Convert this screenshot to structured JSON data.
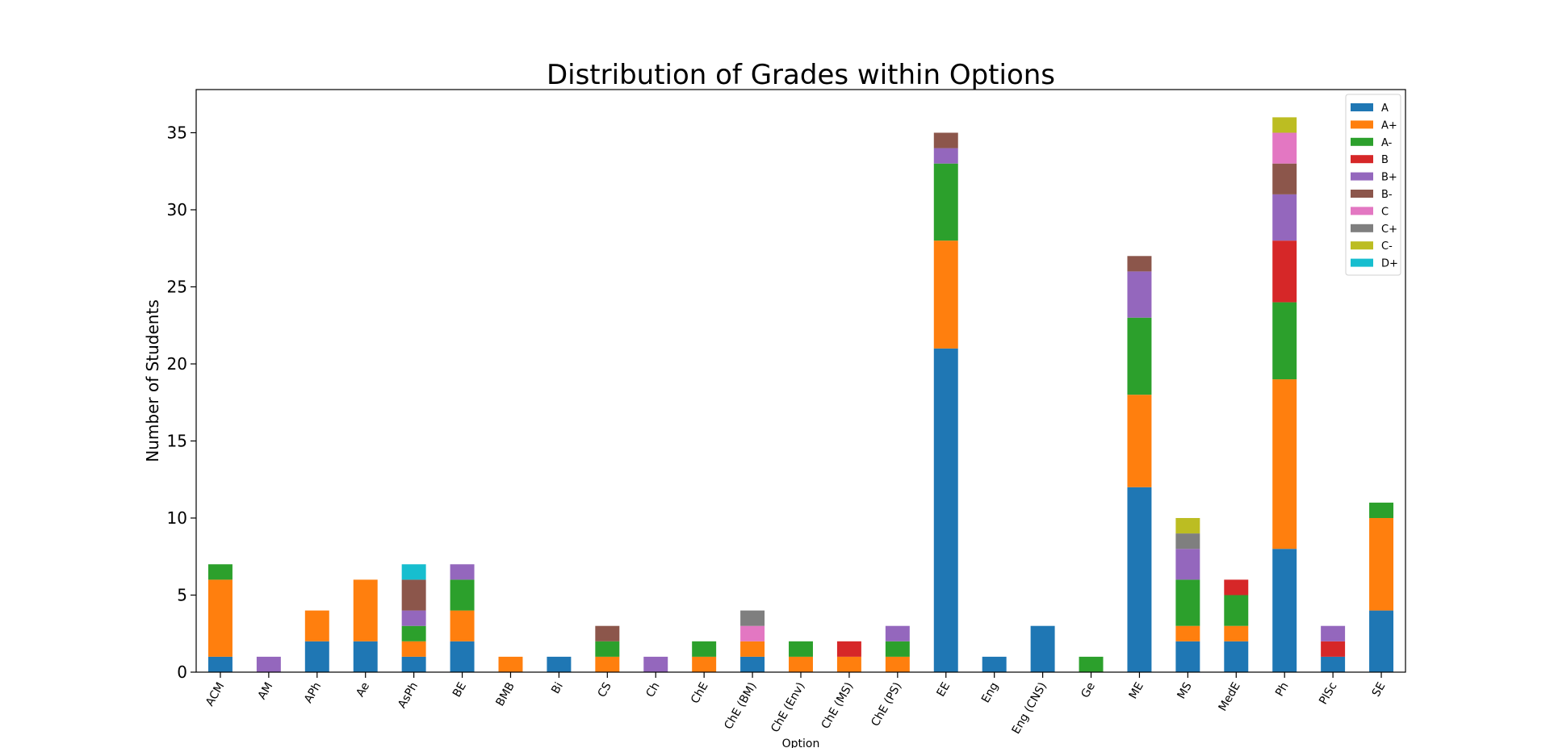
{
  "chart_data": {
    "type": "bar",
    "stacked": true,
    "title": "Distribution of Grades within Options",
    "xlabel": "Option",
    "ylabel": "Number of Students",
    "ylim": [
      0,
      37.8
    ],
    "yticks": [
      0,
      5,
      10,
      15,
      20,
      25,
      30,
      35
    ],
    "grid": false,
    "legend_position": "top-right",
    "categories": [
      "ACM",
      "AM",
      "APh",
      "Ae",
      "AsPh",
      "BE",
      "BMB",
      "Bi",
      "CS",
      "Ch",
      "ChE",
      "ChE (BM)",
      "ChE (Env)",
      "ChE (MS)",
      "ChE (PS)",
      "EE",
      "Eng",
      "Eng (CNS)",
      "Ge",
      "ME",
      "MS",
      "MedE",
      "Ph",
      "PlSc",
      "SE"
    ],
    "series": [
      {
        "name": "A",
        "color": "#1f77b4",
        "values": [
          1,
          0,
          2,
          2,
          1,
          2,
          0,
          1,
          0,
          0,
          0,
          1,
          0,
          0,
          0,
          21,
          1,
          3,
          0,
          12,
          2,
          2,
          8,
          1,
          4
        ]
      },
      {
        "name": "A+",
        "color": "#ff7f0e",
        "values": [
          5,
          0,
          2,
          4,
          1,
          2,
          1,
          0,
          1,
          0,
          1,
          1,
          1,
          1,
          1,
          7,
          0,
          0,
          0,
          6,
          1,
          1,
          11,
          0,
          6
        ]
      },
      {
        "name": "A-",
        "color": "#2ca02c",
        "values": [
          1,
          0,
          0,
          0,
          1,
          2,
          0,
          0,
          1,
          0,
          1,
          0,
          1,
          0,
          1,
          5,
          0,
          0,
          1,
          5,
          3,
          2,
          5,
          0,
          1
        ]
      },
      {
        "name": "B",
        "color": "#d62728",
        "values": [
          0,
          0,
          0,
          0,
          0,
          0,
          0,
          0,
          0,
          0,
          0,
          0,
          0,
          1,
          0,
          0,
          0,
          0,
          0,
          0,
          0,
          1,
          4,
          1,
          0
        ]
      },
      {
        "name": "B+",
        "color": "#9467bd",
        "values": [
          0,
          1,
          0,
          0,
          1,
          1,
          0,
          0,
          0,
          1,
          0,
          0,
          0,
          0,
          1,
          1,
          0,
          0,
          0,
          3,
          2,
          0,
          3,
          1,
          0
        ]
      },
      {
        "name": "B-",
        "color": "#8c564b",
        "values": [
          0,
          0,
          0,
          0,
          2,
          0,
          0,
          0,
          1,
          0,
          0,
          0,
          0,
          0,
          0,
          1,
          0,
          0,
          0,
          1,
          0,
          0,
          2,
          0,
          0
        ]
      },
      {
        "name": "C",
        "color": "#e377c2",
        "values": [
          0,
          0,
          0,
          0,
          0,
          0,
          0,
          0,
          0,
          0,
          0,
          1,
          0,
          0,
          0,
          0,
          0,
          0,
          0,
          0,
          0,
          0,
          2,
          0,
          0
        ]
      },
      {
        "name": "C+",
        "color": "#7f7f7f",
        "values": [
          0,
          0,
          0,
          0,
          0,
          0,
          0,
          0,
          0,
          0,
          0,
          1,
          0,
          0,
          0,
          0,
          0,
          0,
          0,
          0,
          1,
          0,
          0,
          0,
          0
        ]
      },
      {
        "name": "C-",
        "color": "#bcbd22",
        "values": [
          0,
          0,
          0,
          0,
          0,
          0,
          0,
          0,
          0,
          0,
          0,
          0,
          0,
          0,
          0,
          0,
          0,
          0,
          0,
          0,
          1,
          0,
          1,
          0,
          0
        ]
      },
      {
        "name": "D+",
        "color": "#17becf",
        "values": [
          0,
          0,
          0,
          0,
          1,
          0,
          0,
          0,
          0,
          0,
          0,
          0,
          0,
          0,
          0,
          0,
          0,
          0,
          0,
          0,
          0,
          0,
          0,
          0,
          0
        ]
      }
    ]
  }
}
